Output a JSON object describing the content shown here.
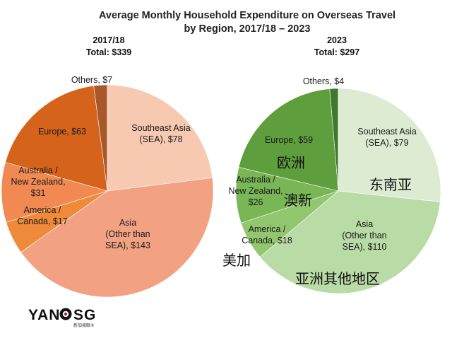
{
  "title_line1": "Average Monthly Household Expenditure on Overseas Travel",
  "title_line2": "by Region, 2017/18 – 2023",
  "logo": {
    "text_left": "YAN",
    "text_right": "SG",
    "sub": "新加坡眼®"
  },
  "colors": {
    "pie1": [
      "#f7c9b1",
      "#f2a283",
      "#ef8a3a",
      "#f08a52",
      "#d5631c",
      "#a8582a"
    ],
    "pie2": [
      "#dcebd2",
      "#b9dba5",
      "#92c66f",
      "#79b756",
      "#5e9e3c",
      "#3e7a2d"
    ]
  },
  "chart_data": [
    {
      "type": "pie",
      "title": "2017/18",
      "subtitle": "Total: $339",
      "total": 339,
      "slices": [
        {
          "name": "Southeast Asia (SEA)",
          "value": 78,
          "label_lines": [
            "Southeast Asia",
            "(SEA), $78"
          ],
          "cn": ""
        },
        {
          "name": "Asia (Other than SEA)",
          "value": 143,
          "label_lines": [
            "Asia",
            "(Other than",
            "SEA), $143"
          ],
          "cn": ""
        },
        {
          "name": "America / Canada",
          "value": 17,
          "label_lines": [
            "America /",
            "Canada, $17"
          ],
          "cn": ""
        },
        {
          "name": "Australia / New Zealand",
          "value": 31,
          "label_lines": [
            "Australia /",
            "New Zealand,",
            "$31"
          ],
          "cn": ""
        },
        {
          "name": "Europe",
          "value": 63,
          "label_lines": [
            "Europe, $63"
          ],
          "cn": ""
        },
        {
          "name": "Others",
          "value": 7,
          "label_lines": [
            "Others, $7"
          ],
          "cn": ""
        }
      ]
    },
    {
      "type": "pie",
      "title": "2023",
      "subtitle": "Total: $297",
      "total": 297,
      "slices": [
        {
          "name": "Southeast Asia (SEA)",
          "value": 79,
          "label_lines": [
            "Southeast Asia",
            "(SEA), $79"
          ],
          "cn": "东南亚"
        },
        {
          "name": "Asia (Other than SEA)",
          "value": 110,
          "label_lines": [
            "Asia",
            "(Other than",
            "SEA), $110"
          ],
          "cn": "亚洲其他地区"
        },
        {
          "name": "America / Canada",
          "value": 18,
          "label_lines": [
            "America /",
            "Canada, $18"
          ],
          "cn": "美加"
        },
        {
          "name": "Australia / New Zealand",
          "value": 26,
          "label_lines": [
            "Australia /",
            "New Zealand,",
            "$26"
          ],
          "cn": "澳新"
        },
        {
          "name": "Europe",
          "value": 59,
          "label_lines": [
            "Europe, $59"
          ],
          "cn": "欧洲"
        },
        {
          "name": "Others",
          "value": 4,
          "label_lines": [
            "Others, $4"
          ],
          "cn": ""
        }
      ]
    }
  ]
}
